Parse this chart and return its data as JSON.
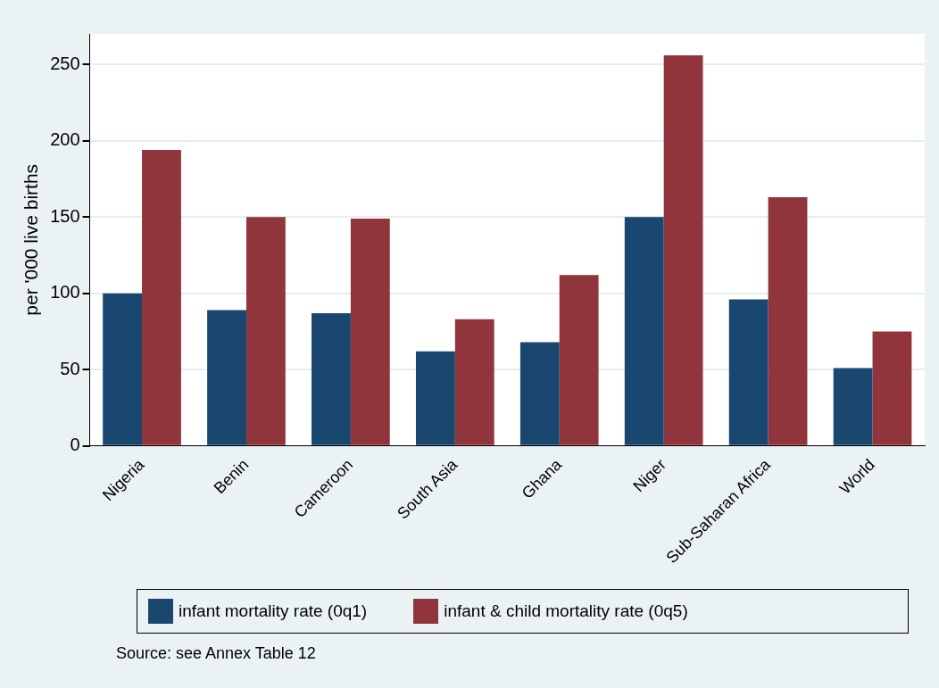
{
  "chart_data": {
    "type": "bar",
    "ylabel": "per '000 live births",
    "categories": [
      "Nigeria",
      "Benin",
      "Cameroon",
      "South Asia",
      "Ghana",
      "Niger",
      "Sub-Saharan Africa",
      "World"
    ],
    "series": [
      {
        "name": "infant mortality rate (0q1)",
        "color": "#1a476f",
        "values": [
          100,
          89,
          87,
          62,
          68,
          150,
          96,
          51
        ]
      },
      {
        "name": "infant & child mortality rate (0q5)",
        "color": "#90353b",
        "values": [
          194,
          150,
          149,
          83,
          112,
          256,
          163,
          75
        ]
      }
    ],
    "ylim": [
      0,
      270
    ],
    "yticks": [
      0,
      50,
      100,
      150,
      200,
      250
    ],
    "grid": "y",
    "legend": "bottom",
    "annotations": [
      "Source: see Annex Table 12"
    ]
  }
}
